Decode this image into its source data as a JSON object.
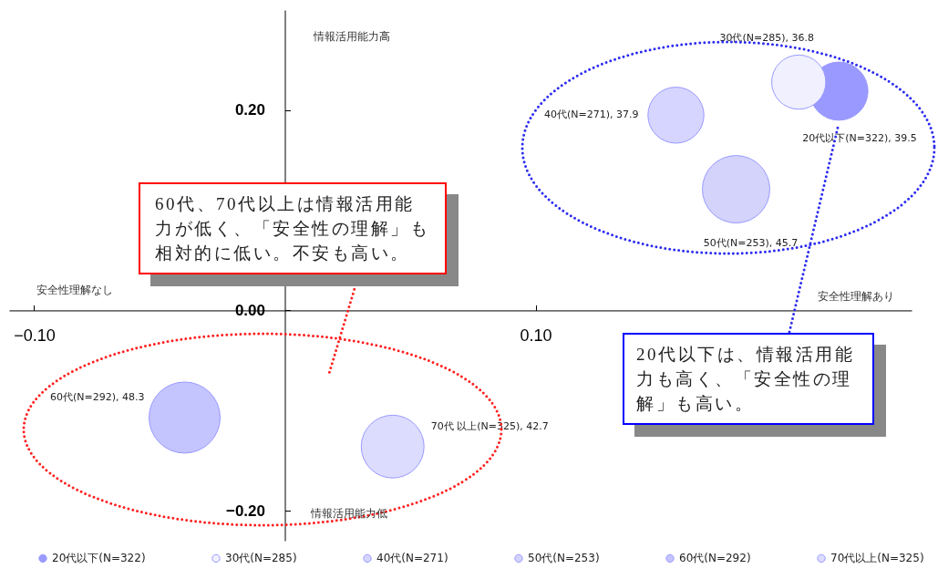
{
  "chart_data": {
    "type": "bubble",
    "xlim": [
      -0.11,
      0.25
    ],
    "ylim": [
      -0.23,
      0.3
    ],
    "xticks": [
      {
        "value": -0.1,
        "label": "−0.10"
      },
      {
        "value": 0.1,
        "label": "0.10"
      }
    ],
    "yticks": [
      {
        "value": -0.2,
        "label": "−0.20"
      },
      {
        "value": 0,
        "label": "0.00"
      },
      {
        "value": 0.2,
        "label": "0.20"
      }
    ],
    "legend": "bottom",
    "annotations": [
      "情報活用能力高",
      "情報活用能力低",
      "安全性理解なし",
      "安全性理解あり",
      "60代、70代以上は情報活用能力が低く、「安全性の理解」も相対的に低い。不安も高い。",
      "20代以下は、情報活用能力も高く、「安全性の理解」も高い。"
    ],
    "series": [
      {
        "name": "20代以下(N=322)",
        "color": "#9999ff",
        "x": [
          0.221
        ],
        "values": [
          0.219
        ],
        "sizes": [
          0.67
        ],
        "value_labels": [
          "20代以下(N=322), 39.5"
        ]
      },
      {
        "name": "30代(N=285)",
        "color": "#f0f0ff",
        "x": [
          0.205
        ],
        "values": [
          0.228
        ],
        "sizes": [
          0.58
        ],
        "value_labels": [
          "30代(N=285), 36.8"
        ]
      },
      {
        "name": "40代(N=271)",
        "color": "#d5d5ff",
        "x": [
          0.156
        ],
        "values": [
          0.195
        ],
        "sizes": [
          0.62
        ],
        "value_labels": [
          "40代(N=271), 37.9"
        ]
      },
      {
        "name": "50代(N=253)",
        "color": "#d3d3fb",
        "x": [
          0.18
        ],
        "values": [
          0.121
        ],
        "sizes": [
          0.9
        ],
        "value_labels": [
          "50代(N=253), 45.7"
        ]
      },
      {
        "name": "60代(N=292)",
        "color": "#c4c4ff",
        "x": [
          -0.04
        ],
        "values": [
          -0.107
        ],
        "sizes": [
          1
        ],
        "value_labels": [
          "60代(N=292), 48.3"
        ]
      },
      {
        "name": "70代以上(N=325)",
        "color": "#dcdcff",
        "x": [
          0.043
        ],
        "values": [
          -0.136
        ],
        "sizes": [
          0.78
        ],
        "value_labels": [
          "70代 以上(N=325), 42.7"
        ]
      }
    ]
  }
}
